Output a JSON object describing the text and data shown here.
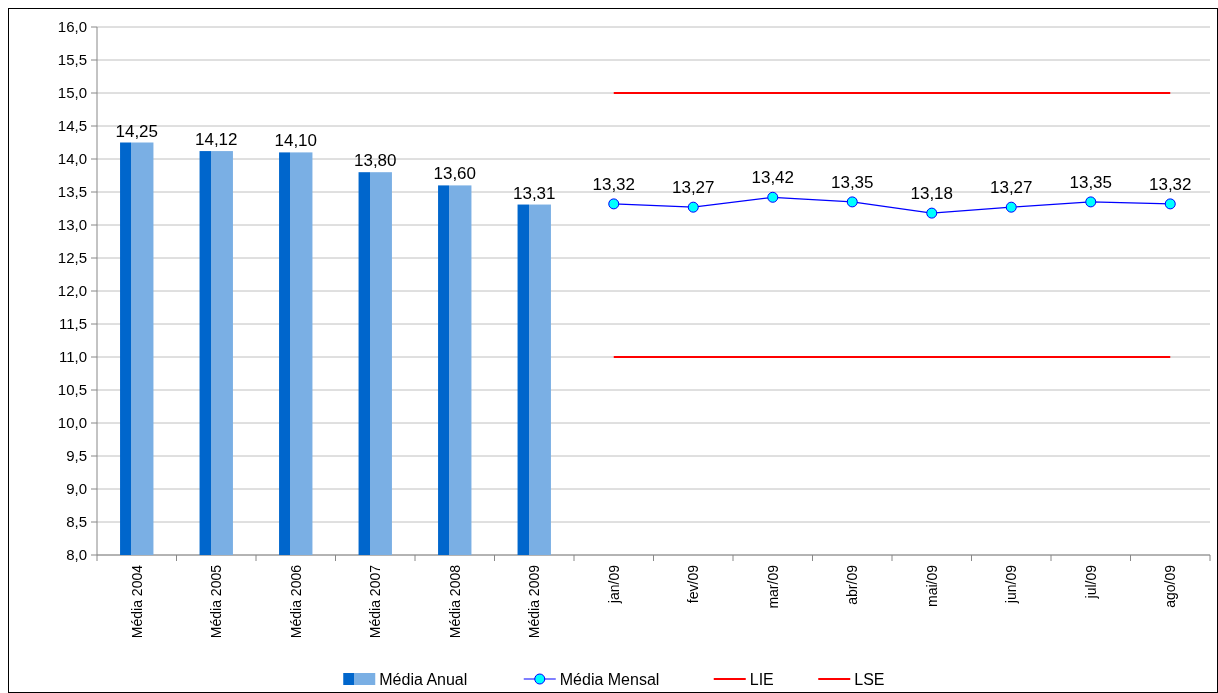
{
  "chart_data": {
    "type": "bar",
    "categories": [
      "Média 2004",
      "Média 2005",
      "Média 2006",
      "Média 2007",
      "Média 2008",
      "Média 2009",
      "jan/09",
      "fev/09",
      "mar/09",
      "abr/09",
      "mai/09",
      "jun/09",
      "jul/09",
      "ago/09"
    ],
    "series": [
      {
        "name": "Média Anual",
        "color": "#0066cc",
        "values": [
          14.25,
          14.12,
          14.1,
          13.8,
          13.6,
          13.31,
          null,
          null,
          null,
          null,
          null,
          null,
          null,
          null
        ],
        "value_labels": [
          "14,25",
          "14,12",
          "14,10",
          "13,80",
          "13,60",
          "13,31",
          null,
          null,
          null,
          null,
          null,
          null,
          null,
          null
        ]
      },
      {
        "name": "Média Mensal",
        "type": "line",
        "color": "#0000ff",
        "marker": "circle",
        "values": [
          null,
          null,
          null,
          null,
          null,
          null,
          13.32,
          13.27,
          13.42,
          13.35,
          13.18,
          13.27,
          13.35,
          13.32
        ],
        "value_labels": [
          null,
          null,
          null,
          null,
          null,
          null,
          "13,32",
          "13,27",
          "13,42",
          "13,35",
          "13,18",
          "13,27",
          "13,35",
          "13,32"
        ]
      },
      {
        "name": "LIE",
        "type": "line",
        "color": "#ff0000",
        "marker": "none",
        "values": [
          null,
          null,
          null,
          null,
          null,
          null,
          11,
          11,
          11,
          11,
          11,
          11,
          11,
          11
        ]
      },
      {
        "name": "LSE",
        "type": "line",
        "color": "#ff0000",
        "marker": "none",
        "values": [
          null,
          null,
          null,
          null,
          null,
          null,
          15,
          15,
          15,
          15,
          15,
          15,
          15,
          15
        ]
      }
    ],
    "ylim": [
      8,
      16
    ],
    "yticks": [
      {
        "value": 8,
        "label": "8,0"
      },
      {
        "value": 8.5,
        "label": "8,5"
      },
      {
        "value": 9,
        "label": "9,0"
      },
      {
        "value": 9.5,
        "label": "9,5"
      },
      {
        "value": 10,
        "label": "10,0"
      },
      {
        "value": 10.5,
        "label": "10,5"
      },
      {
        "value": 11,
        "label": "11,0"
      },
      {
        "value": 11.5,
        "label": "11,5"
      },
      {
        "value": 12,
        "label": "12,0"
      },
      {
        "value": 12.5,
        "label": "12,5"
      },
      {
        "value": 13,
        "label": "13,0"
      },
      {
        "value": 13.5,
        "label": "13,5"
      },
      {
        "value": 14,
        "label": "14,0"
      },
      {
        "value": 14.5,
        "label": "14,5"
      },
      {
        "value": 15,
        "label": "15,0"
      },
      {
        "value": 15.5,
        "label": "15,5"
      },
      {
        "value": 16,
        "label": "16,0"
      }
    ],
    "grid": "y",
    "legend": "bottom"
  }
}
